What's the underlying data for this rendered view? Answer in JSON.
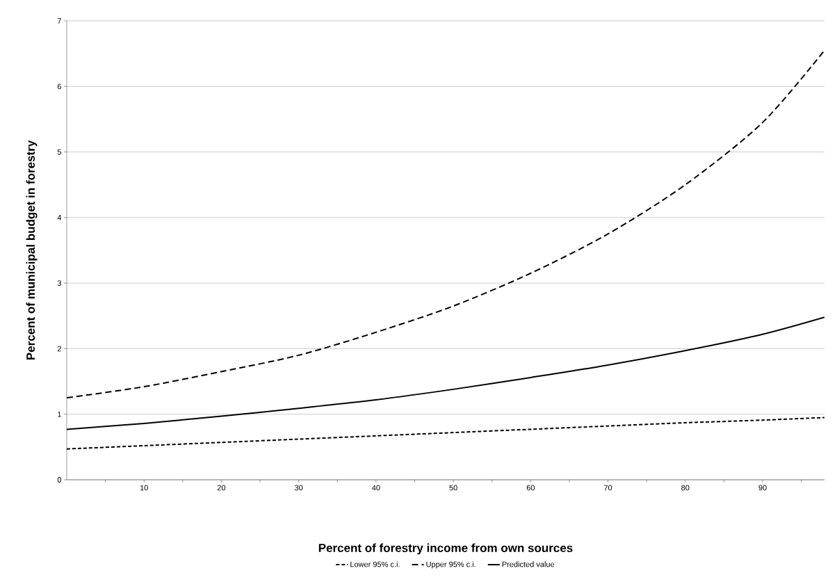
{
  "chart_data": {
    "type": "line",
    "xlabel": "Percent of forestry income from own sources",
    "ylabel": "Percent of municipal budget in forestry",
    "x": [
      0,
      10,
      20,
      30,
      40,
      50,
      60,
      70,
      80,
      90,
      98
    ],
    "series": [
      {
        "name": "Lower 95% c.i.",
        "color": "#000000",
        "line_style": "dashed",
        "values": [
          0.47,
          0.52,
          0.57,
          0.62,
          0.67,
          0.72,
          0.77,
          0.82,
          0.87,
          0.91,
          0.95
        ]
      },
      {
        "name": "Upper 95% c.i.",
        "color": "#000000",
        "line_style": "dashed",
        "values": [
          1.25,
          1.42,
          1.65,
          1.9,
          2.25,
          2.65,
          3.15,
          3.75,
          4.5,
          5.45,
          6.55
        ]
      },
      {
        "name": "Predicted value",
        "color": "#000000",
        "line_style": "solid",
        "values": [
          0.77,
          0.86,
          0.97,
          1.09,
          1.22,
          1.38,
          1.56,
          1.75,
          1.97,
          2.22,
          2.48
        ]
      }
    ],
    "xlim": [
      0,
      98
    ],
    "xticks": [
      {
        "value": 5,
        "label": null
      },
      10,
      {
        "value": 15,
        "label": null
      },
      20,
      {
        "value": 25,
        "label": null
      },
      30,
      {
        "value": 35,
        "label": null
      },
      40,
      {
        "value": 45,
        "label": null
      },
      50,
      {
        "value": 55,
        "label": null
      },
      60,
      {
        "value": 65,
        "label": null
      },
      70,
      {
        "value": 75,
        "label": null
      },
      80,
      {
        "value": 85,
        "label": null
      },
      90,
      {
        "value": 95,
        "label": null
      }
    ],
    "ylim": [
      0,
      7
    ],
    "yticks": [
      0,
      1,
      2,
      3,
      4,
      5,
      6,
      7
    ],
    "grid": "y",
    "legend": "bottom"
  }
}
